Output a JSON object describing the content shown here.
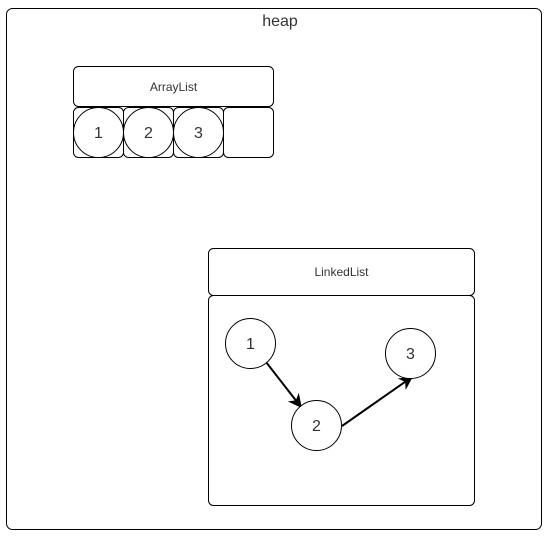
{
  "heap": {
    "title": "heap"
  },
  "array_list": {
    "title": "ArrayList",
    "cells": [
      "1",
      "2",
      "3",
      ""
    ]
  },
  "linked_list": {
    "title": "LinkedList",
    "nodes": [
      "1",
      "2",
      "3"
    ],
    "edges": [
      [
        "1",
        "2"
      ],
      [
        "2",
        "3"
      ]
    ]
  },
  "colors": {
    "stroke": "#000000",
    "text": "#333333",
    "background": "#ffffff"
  }
}
